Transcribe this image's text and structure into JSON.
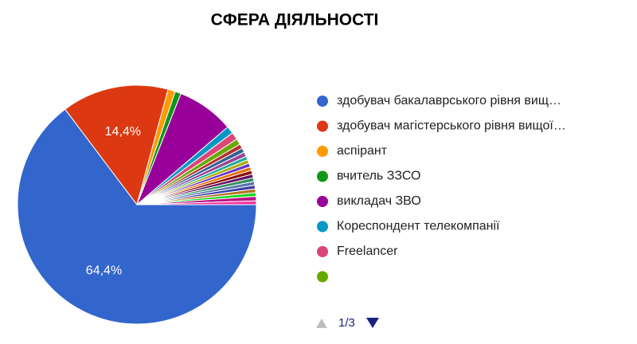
{
  "chart_data": {
    "type": "pie",
    "title": "СФЕРА ДІЯЛЬНОСТІ",
    "categories": [
      "здобувач бакалаврського рівня вищ…",
      "здобувач магістерського рівня вищої…",
      "аспірант",
      "вчитель ЗЗСО",
      "викладач ЗВО",
      "Кореспондент телекомпанії",
      "Freelancer",
      null,
      null,
      null,
      null,
      null,
      null,
      null,
      null,
      null,
      null,
      null,
      null,
      null,
      null,
      null,
      null,
      null
    ],
    "values": [
      64.4,
      14.4,
      1.0,
      0.8,
      7.7,
      1.0,
      1.0,
      0.8,
      0.6,
      0.6,
      0.6,
      0.5,
      0.5,
      0.5,
      0.5,
      0.5,
      0.5,
      0.5,
      0.5,
      0.5,
      0.5,
      0.5,
      0.6,
      0.5
    ],
    "value_labels": [
      "64,4%",
      "14,4%",
      null,
      null,
      null,
      null,
      null,
      null,
      null,
      null,
      null,
      null,
      null,
      null,
      null,
      null,
      null,
      null,
      null,
      null,
      null,
      null,
      null,
      null
    ],
    "colors": [
      "#3366cc",
      "#dc3912",
      "#ff9900",
      "#109618",
      "#990099",
      "#0099c6",
      "#dd4477",
      "#66aa00",
      "#b82e2e",
      "#316395",
      "#994499",
      "#22aa99",
      "#aaaa11",
      "#6633cc",
      "#e67300",
      "#8b0707",
      "#651067",
      "#329262",
      "#5574a6",
      "#3b3eac",
      "#b77322",
      "#16d620",
      "#b91383",
      "#f4359e"
    ],
    "legend_entries_per_page": 8,
    "legend_pager": "1/3"
  }
}
